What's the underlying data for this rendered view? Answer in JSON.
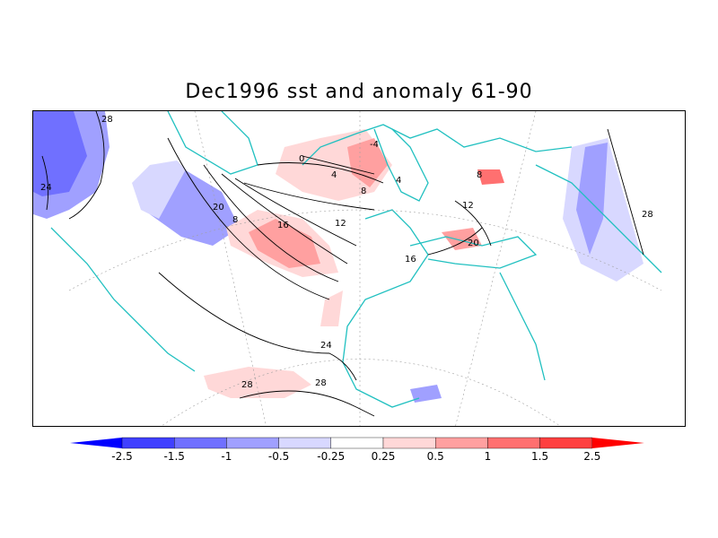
{
  "title": "Dec1996 sst and anomaly 61-90",
  "map": {
    "projection": "polar-stereographic",
    "region": "North Atlantic, Europe, North Africa",
    "coast_color": "#20c0c0",
    "contour_color": "#000000",
    "contour_labels": [
      "28",
      "24",
      "20",
      "16",
      "12",
      "8",
      "4",
      "0",
      "-4",
      "4",
      "8",
      "12",
      "16",
      "20",
      "24",
      "28",
      "28",
      "28",
      "8"
    ]
  },
  "colorbar": {
    "labels": [
      "-2.5",
      "-1.5",
      "-1",
      "-0.5",
      "-0.25",
      "0.25",
      "0.5",
      "1",
      "1.5",
      "2.5"
    ],
    "colors": [
      "#0000ff",
      "#4040ff",
      "#7070ff",
      "#a0a0ff",
      "#d8d8ff",
      "#ffffff",
      "#ffd8d8",
      "#ffa0a0",
      "#ff7070",
      "#ff4040",
      "#ff0000"
    ]
  }
}
